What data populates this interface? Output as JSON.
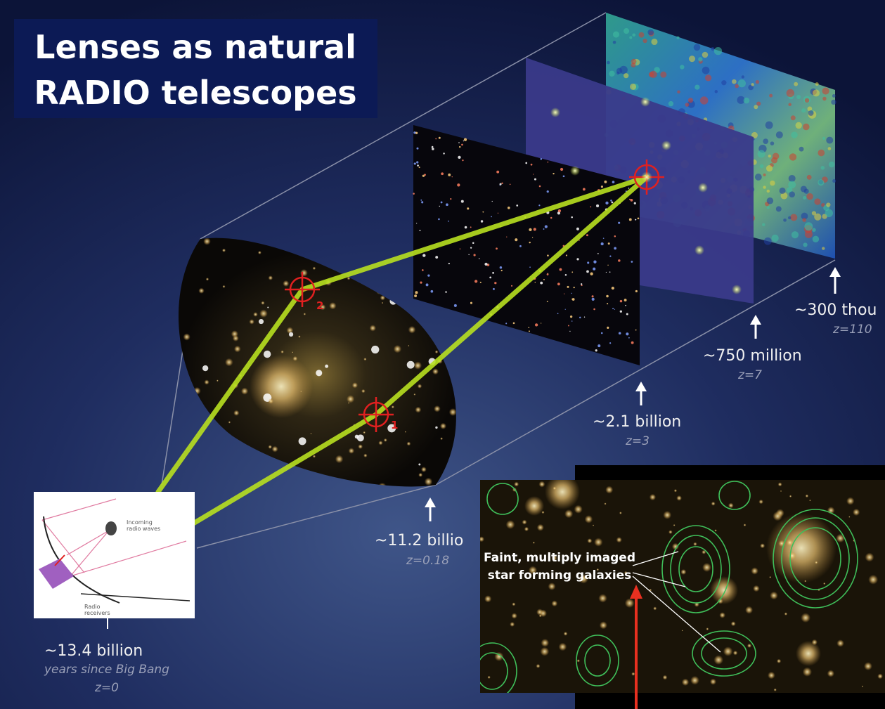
{
  "title": {
    "lines": [
      "Lenses as natural",
      "RADIO telescopes"
    ]
  },
  "epochs": [
    {
      "time": "~300 thou",
      "redshift": "z=110"
    },
    {
      "time": "~750 million",
      "redshift": "z=7"
    },
    {
      "time": "~2.1 billion",
      "redshift": "z=3"
    },
    {
      "time": "~11.2 billio",
      "redshift": "z=0.18"
    },
    {
      "time": "~13.4 billion",
      "unit": "years since Big Bang",
      "redshift": "z=0"
    }
  ],
  "lens_markers": [
    "2",
    "1"
  ],
  "dish_inset": {
    "incoming": [
      "Incoming",
      "radio waves"
    ],
    "receivers": [
      "Radio",
      "receivers"
    ]
  },
  "photo_inset": {
    "caption": [
      "Faint, multiply imaged",
      "star forming galaxies"
    ]
  }
}
